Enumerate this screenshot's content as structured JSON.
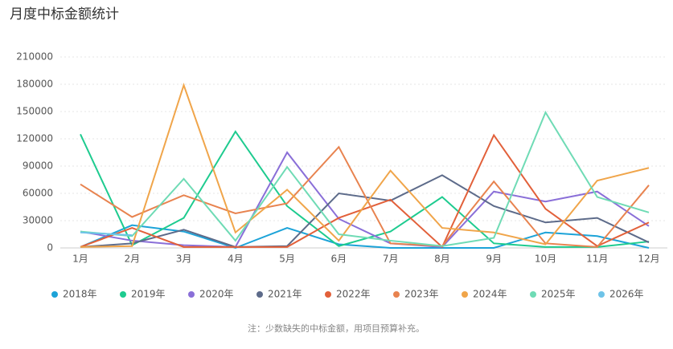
{
  "chart_data": {
    "type": "line",
    "title": "月度中标金额统计",
    "categories": [
      "1月",
      "2月",
      "3月",
      "4月",
      "5月",
      "6月",
      "7月",
      "8月",
      "9月",
      "10月",
      "11月",
      "12月"
    ],
    "ylim": [
      0,
      210000
    ],
    "yticks": [
      0,
      30000,
      60000,
      90000,
      120000,
      150000,
      180000,
      210000
    ],
    "grid": true,
    "series": [
      {
        "name": "2018年",
        "color": "#1ca3d8",
        "values": [
          1000,
          25000,
          18000,
          0,
          22000,
          4000,
          0,
          0,
          0,
          17000,
          13000,
          0
        ]
      },
      {
        "name": "2019年",
        "color": "#1ecb8f",
        "values": [
          125000,
          3000,
          33000,
          128000,
          46000,
          2000,
          18000,
          56000,
          5000,
          1000,
          1000,
          7000
        ]
      },
      {
        "name": "2020年",
        "color": "#8a6fd8",
        "values": [
          18000,
          8000,
          3000,
          1000,
          105000,
          32000,
          5000,
          1000,
          62000,
          51000,
          62000,
          24000
        ]
      },
      {
        "name": "2021年",
        "color": "#5d6b8a",
        "values": [
          1000,
          5000,
          20000,
          1000,
          2000,
          60000,
          52000,
          80000,
          46000,
          28000,
          33000,
          6000
        ]
      },
      {
        "name": "2022年",
        "color": "#e2603a",
        "values": [
          1000,
          22000,
          1000,
          1000,
          1000,
          33000,
          53000,
          1000,
          124000,
          43000,
          2000,
          28000
        ]
      },
      {
        "name": "2023年",
        "color": "#e8834f",
        "values": [
          70000,
          34000,
          58000,
          38000,
          49000,
          111000,
          5000,
          2000,
          73000,
          5000,
          1000,
          69000
        ]
      },
      {
        "name": "2024年",
        "color": "#f0a54a",
        "values": [
          1000,
          2000,
          179000,
          17000,
          64000,
          8000,
          85000,
          22000,
          17000,
          4000,
          74000,
          88000
        ]
      },
      {
        "name": "2025年",
        "color": "#6fdbb5",
        "values": [
          18000,
          13000,
          76000,
          8000,
          89000,
          15000,
          8000,
          2000,
          11000,
          149000,
          56000,
          39000
        ]
      },
      {
        "name": "2026年",
        "color": "#6ec3e8",
        "values": [
          17000,
          14000,
          null,
          null,
          null,
          null,
          null,
          null,
          null,
          null,
          null,
          null
        ]
      }
    ],
    "note": "注：少数缺失的中标金额，用项目预算补充。"
  }
}
